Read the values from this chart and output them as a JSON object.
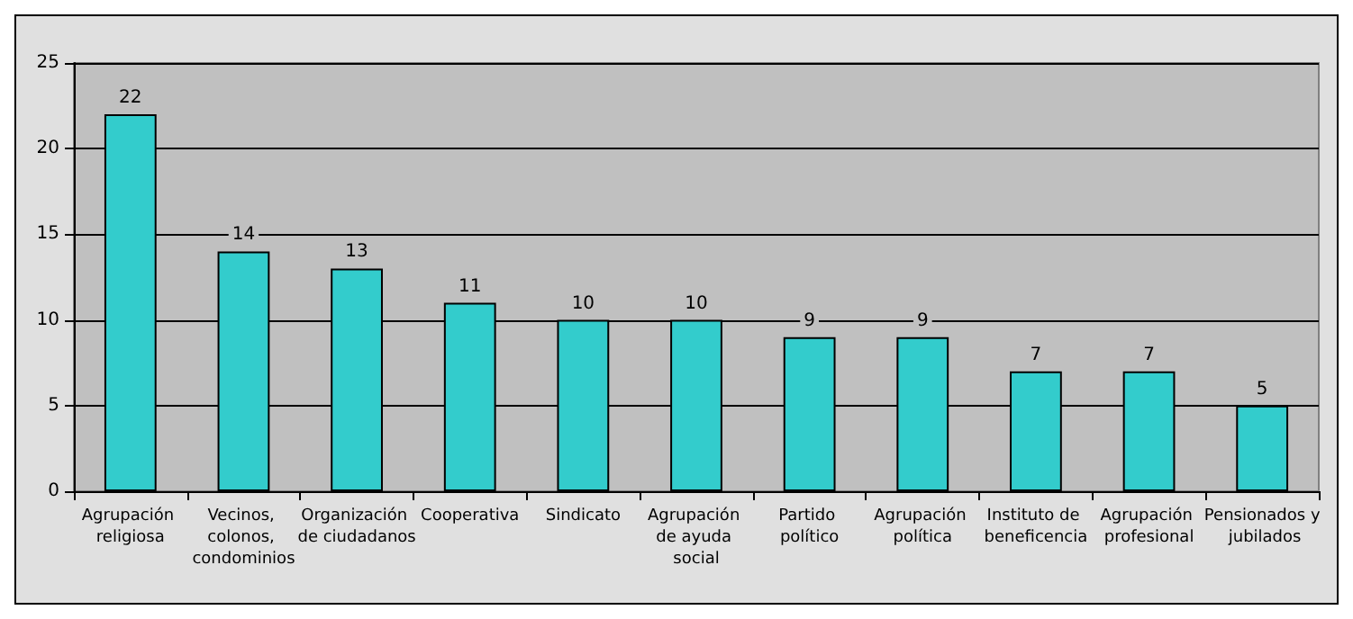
{
  "chart_data": {
    "type": "bar",
    "categories": [
      "Agrupación religiosa",
      "Vecinos, colonos, condominios",
      "Organización de ciudadanos",
      "Cooperativa",
      "Sindicato",
      "Agrupación de ayuda social",
      "Partido político",
      "Agrupación política",
      "Instituto de beneficencia",
      "Agrupación profesional",
      "Pensionados y jubilados"
    ],
    "values": [
      22,
      14,
      13,
      11,
      10,
      10,
      9,
      9,
      7,
      7,
      5
    ],
    "color": "#33cccc",
    "ylim": [
      0,
      25
    ],
    "yticks": [
      0,
      5,
      10,
      15,
      20,
      25
    ],
    "grid": "y",
    "data_labels": true
  }
}
